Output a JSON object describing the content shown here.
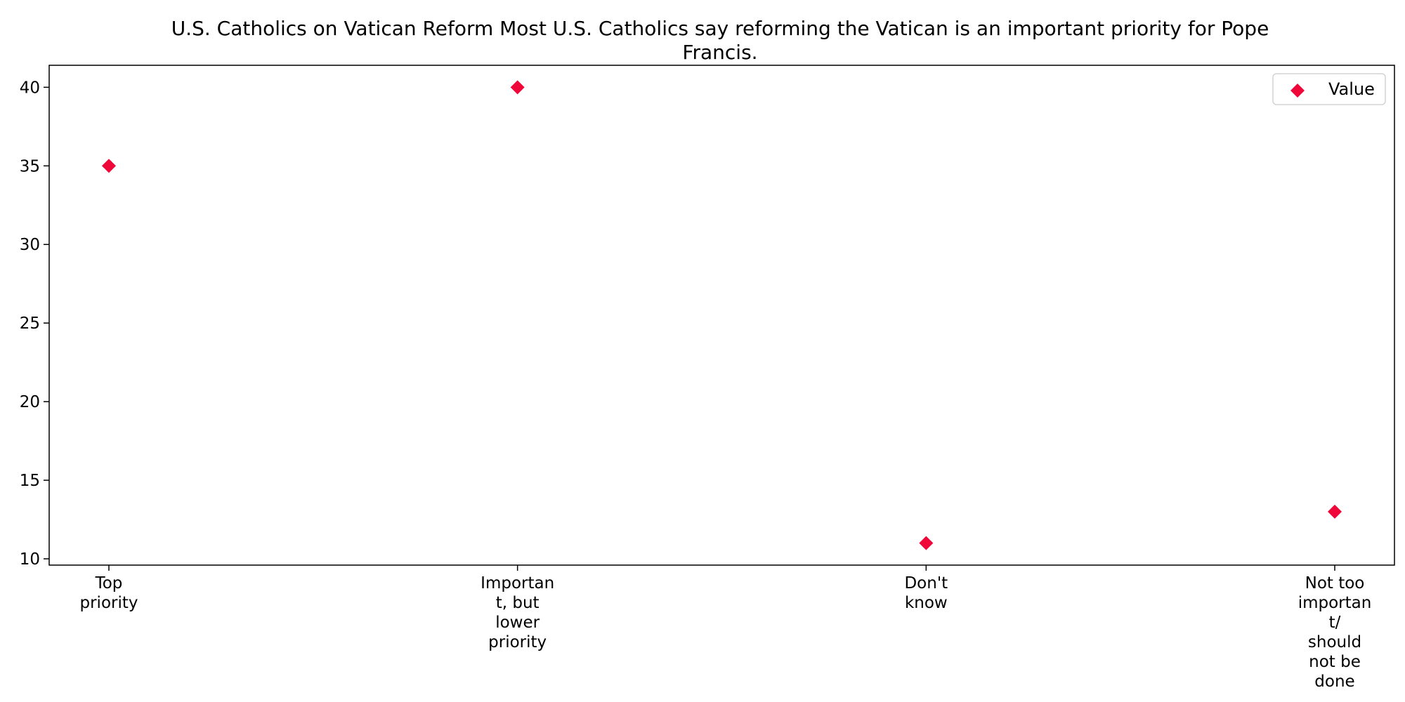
{
  "chart_data": {
    "type": "scatter",
    "title_lines": [
      "U.S. Catholics on Vatican Reform Most U.S. Catholics say reforming the Vatican is an important priority for Pope",
      "Francis."
    ],
    "categories": [
      "Top priority",
      "Important, but lower priority",
      "Don't know",
      "Not too important/ should not be done"
    ],
    "category_label_lines": [
      [
        "Top",
        "priority"
      ],
      [
        "Importan",
        "t, but",
        "lower",
        "priority"
      ],
      [
        "Don't",
        "know"
      ],
      [
        "Not too",
        "importan",
        "t/",
        "should",
        "not be",
        "done"
      ]
    ],
    "series": [
      {
        "name": "Value",
        "values": [
          35,
          40,
          11,
          13
        ],
        "color": "#f0073a",
        "marker": "diamond"
      }
    ],
    "y_ticks": [
      10,
      15,
      20,
      25,
      30,
      35,
      40
    ],
    "ylim": [
      9.6,
      41.4
    ],
    "grid": false,
    "legend": {
      "placement": "top-right",
      "label": "Value"
    }
  }
}
